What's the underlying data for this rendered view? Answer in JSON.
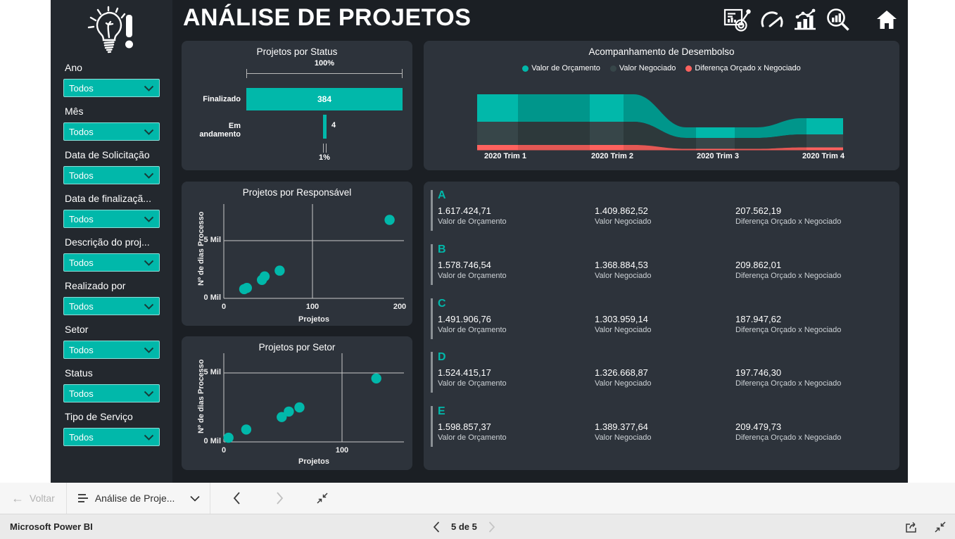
{
  "colors": {
    "accent": "#01B8AA",
    "negotiated": "#374649",
    "difference": "#FD625E",
    "canvas": "#1b1f24",
    "sidebar": "#23282e",
    "panel": "#2d333b"
  },
  "sidebar": {
    "logo": "idea-lightbulb-exclamation",
    "filters": [
      {
        "label": "Ano",
        "value": "Todos"
      },
      {
        "label": "Mês",
        "value": "Todos"
      },
      {
        "label": "Data de Solicitação",
        "value": "Todos"
      },
      {
        "label": "Data de finalizaçã...",
        "value": "Todos"
      },
      {
        "label": "Descrição do proj...",
        "value": "Todos"
      },
      {
        "label": "Realizado por",
        "value": "Todos"
      },
      {
        "label": "Setor",
        "value": "Todos"
      },
      {
        "label": "Status",
        "value": "Todos"
      },
      {
        "label": "Tipo de Serviço",
        "value": "Todos"
      }
    ]
  },
  "header": {
    "title": "ANÁLISE DE PROJETOS",
    "icons": [
      "report-analysis",
      "gauge",
      "bar-chart-trend",
      "search-chart",
      "home"
    ]
  },
  "status_chart": {
    "title": "Projetos por Status",
    "type": "funnel",
    "max_label": "100%",
    "min_label": "1%",
    "bars": [
      {
        "label": "Finalizado",
        "value": "384"
      },
      {
        "label": "Em andamento",
        "value": "4"
      }
    ]
  },
  "desembolso_chart": {
    "title": "Acompanhamento de Desembolso",
    "type": "area",
    "legend": [
      {
        "label": "Valor de Orçamento",
        "color": "#01B8AA"
      },
      {
        "label": "Valor Negociado",
        "color": "#374649"
      },
      {
        "label": "Diferença Orçado x Negociado",
        "color": "#FD625E"
      }
    ],
    "x_labels": [
      "2020 Trim 1",
      "2020 Trim 2",
      "2020 Trim 3",
      "2020 Trim 4"
    ],
    "series": [
      {
        "name": "Valor de Orçamento",
        "values_relative": [
          39,
          39,
          15,
          23
        ]
      },
      {
        "name": "Valor Negociado",
        "values_relative": [
          33,
          33,
          16,
          19
        ]
      },
      {
        "name": "Diferença Orçado x Negociado",
        "values_relative": [
          7,
          7,
          2,
          4
        ]
      }
    ]
  },
  "responsavel_chart": {
    "title": "Projetos por Responsável",
    "type": "scatter",
    "xlabel": "Projetos",
    "ylabel": "Nº de dias Processo",
    "yticks": [
      "0 Mil",
      "5 Mil"
    ],
    "xticks": [
      "0",
      "100",
      "200"
    ],
    "points": [
      [
        23,
        0.8
      ],
      [
        26,
        0.9
      ],
      [
        43,
        1.6
      ],
      [
        46,
        1.9
      ],
      [
        63,
        2.4
      ],
      [
        187,
        6.8
      ]
    ]
  },
  "setor_chart": {
    "title": "Projetos por Setor",
    "type": "scatter",
    "xlabel": "Projetos",
    "ylabel": "Nº de dias Processo",
    "yticks": [
      "0 Mil",
      "5 Mil"
    ],
    "xticks": [
      "0",
      "100"
    ],
    "points": [
      [
        4,
        0.3
      ],
      [
        19,
        0.9
      ],
      [
        49,
        1.8
      ],
      [
        55,
        2.2
      ],
      [
        64,
        2.5
      ],
      [
        129,
        4.6
      ]
    ]
  },
  "cards": {
    "metric_labels": [
      "Valor de Orçamento",
      "Valor Negociado",
      "Diferença Orçado x Negociado"
    ],
    "rows": [
      {
        "letter": "A",
        "orcamento": "1.617.424,71",
        "negociado": "1.409.862,52",
        "diferenca": "207.562,19"
      },
      {
        "letter": "B",
        "orcamento": "1.578.746,54",
        "negociado": "1.368.884,53",
        "diferenca": "209.862,01"
      },
      {
        "letter": "C",
        "orcamento": "1.491.906,76",
        "negociado": "1.303.959,14",
        "diferenca": "187.947,62"
      },
      {
        "letter": "D",
        "orcamento": "1.524.415,17",
        "negociado": "1.326.668,87",
        "diferenca": "197.746,30"
      },
      {
        "letter": "E",
        "orcamento": "1.598.857,37",
        "negociado": "1.389.377,64",
        "diferenca": "209.479,73"
      }
    ]
  },
  "toolbar": {
    "back_label": "Voltar",
    "page_menu_label": "Análise de Proje..."
  },
  "statusbar": {
    "brand": "Microsoft Power BI",
    "page_indicator": "5 de 5"
  }
}
